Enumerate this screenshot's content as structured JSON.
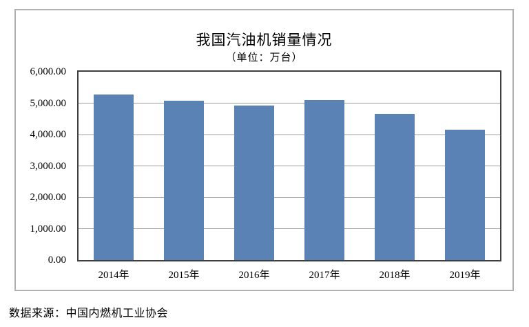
{
  "chart": {
    "title": "我国汽油机销量情况",
    "subtitle": "（单位：万台）",
    "source_note": "数据来源：中国内燃机工业协会"
  },
  "chart_data": {
    "type": "bar",
    "title": "我国汽油机销量情况",
    "subtitle": "（单位：万台）",
    "unit": "万台",
    "categories": [
      "2014年",
      "2015年",
      "2016年",
      "2017年",
      "2018年",
      "2019年"
    ],
    "values": [
      5270,
      5080,
      4930,
      5090,
      4670,
      4165
    ],
    "xlabel": "",
    "ylabel": "",
    "ylim": [
      0,
      6000
    ],
    "ytick_interval": 1000,
    "ytick_labels": [
      "0.00",
      "1,000.00",
      "2,000.00",
      "3,000.00",
      "4,000.00",
      "5,000.00",
      "6,000.00"
    ],
    "grid": true,
    "legend": false,
    "bar_color": "#5b82b5",
    "gridline_color": "#9c9c9c",
    "plot_border_color": "#3f3f3f",
    "outer_border_color": "#b0b0b0",
    "source_note": "数据来源：中国内燃机工业协会"
  }
}
